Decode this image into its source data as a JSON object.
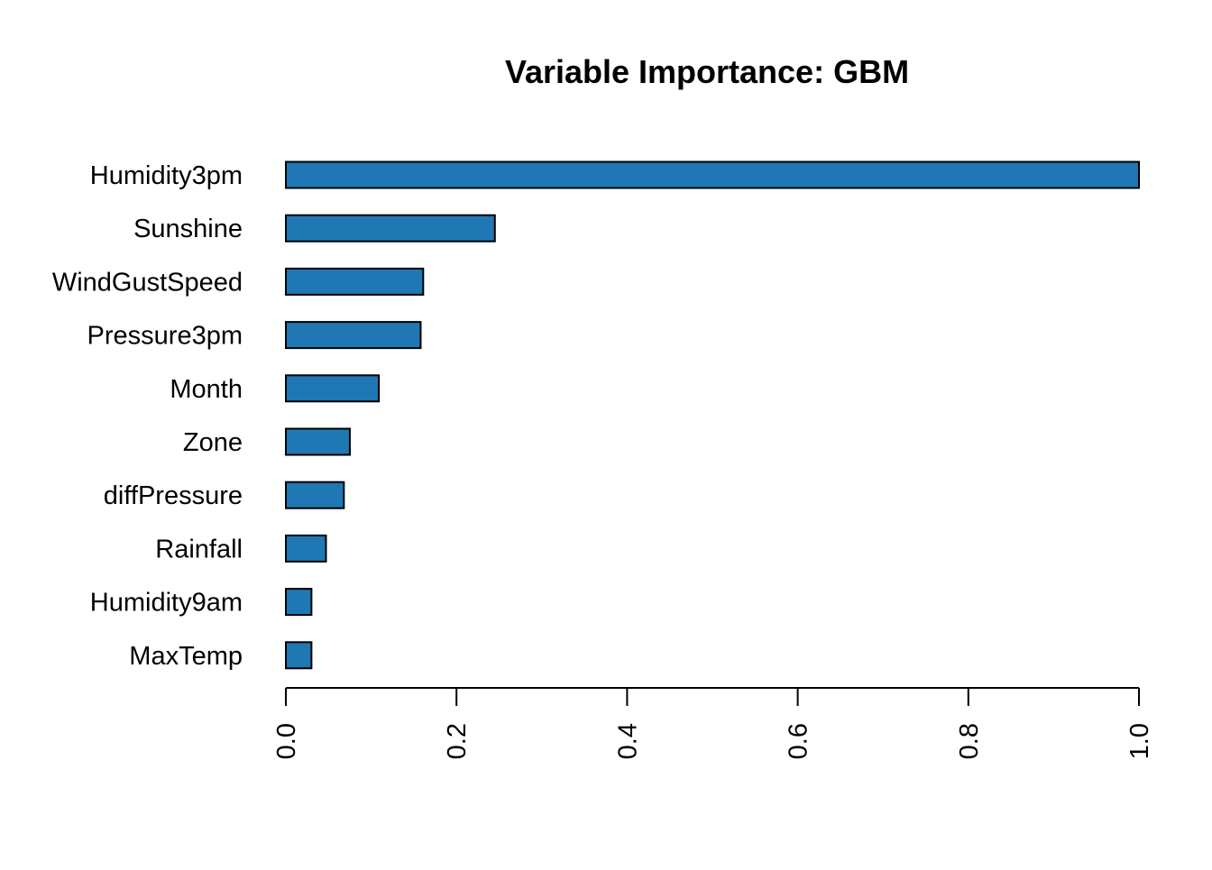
{
  "chart_data": {
    "type": "bar",
    "orientation": "horizontal",
    "title": "Variable Importance: GBM",
    "xlabel": "",
    "ylabel": "",
    "categories": [
      "Humidity3pm",
      "Sunshine",
      "WindGustSpeed",
      "Pressure3pm",
      "Month",
      "Zone",
      "diffPressure",
      "Rainfall",
      "Humidity9am",
      "MaxTemp"
    ],
    "values": [
      1.0,
      0.245,
      0.161,
      0.158,
      0.109,
      0.075,
      0.068,
      0.047,
      0.03,
      0.03
    ],
    "xlim": [
      0,
      1
    ],
    "xticks": [
      0,
      0.2,
      0.4,
      0.6,
      0.8,
      1
    ],
    "xtick_labels": [
      "0.0",
      "0.2",
      "0.4",
      "0.6",
      "0.8",
      "1.0"
    ],
    "tick_label_rotation": "vertical",
    "bar_color": "#1f78b4",
    "grid": false,
    "legend": "none"
  }
}
